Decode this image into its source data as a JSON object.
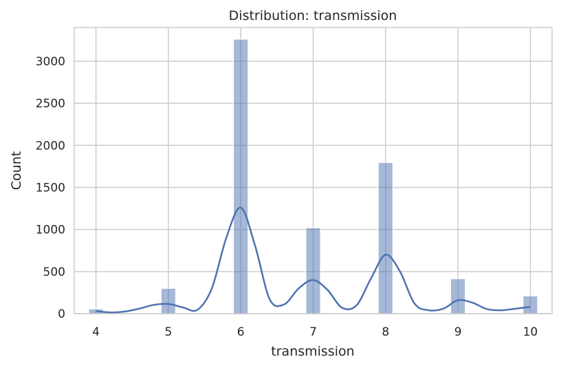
{
  "chart_data": {
    "type": "bar",
    "title": "Distribution: transmission",
    "xlabel": "transmission",
    "ylabel": "Count",
    "xlim": [
      3.7,
      10.3
    ],
    "ylim": [
      0,
      3400
    ],
    "xticks": [
      "4",
      "5",
      "6",
      "7",
      "8",
      "9",
      "10"
    ],
    "yticks": [
      "0",
      "500",
      "1000",
      "1500",
      "2000",
      "2500",
      "3000"
    ],
    "grid": true,
    "legend": "none",
    "bar_color": "#4c72b0",
    "bin_width": 0.2,
    "bins": [
      {
        "x": 4,
        "count": 55
      },
      {
        "x": 5,
        "count": 300
      },
      {
        "x": 6,
        "count": 3260
      },
      {
        "x": 7,
        "count": 1020
      },
      {
        "x": 8,
        "count": 1795
      },
      {
        "x": 9,
        "count": 415
      },
      {
        "x": 10,
        "count": 210
      }
    ],
    "kde": {
      "x": [
        4.0,
        4.2,
        4.4,
        4.6,
        4.8,
        5.0,
        5.2,
        5.4,
        5.6,
        5.8,
        6.0,
        6.2,
        6.4,
        6.6,
        6.8,
        7.0,
        7.2,
        7.4,
        7.6,
        7.8,
        8.0,
        8.2,
        8.4,
        8.6,
        8.8,
        9.0,
        9.2,
        9.4,
        9.6,
        9.8,
        10.0
      ],
      "y": [
        30,
        15,
        25,
        60,
        105,
        115,
        75,
        45,
        300,
        900,
        1260,
        800,
        170,
        110,
        300,
        400,
        280,
        70,
        100,
        420,
        700,
        500,
        120,
        40,
        60,
        160,
        130,
        55,
        40,
        60,
        80
      ]
    }
  }
}
